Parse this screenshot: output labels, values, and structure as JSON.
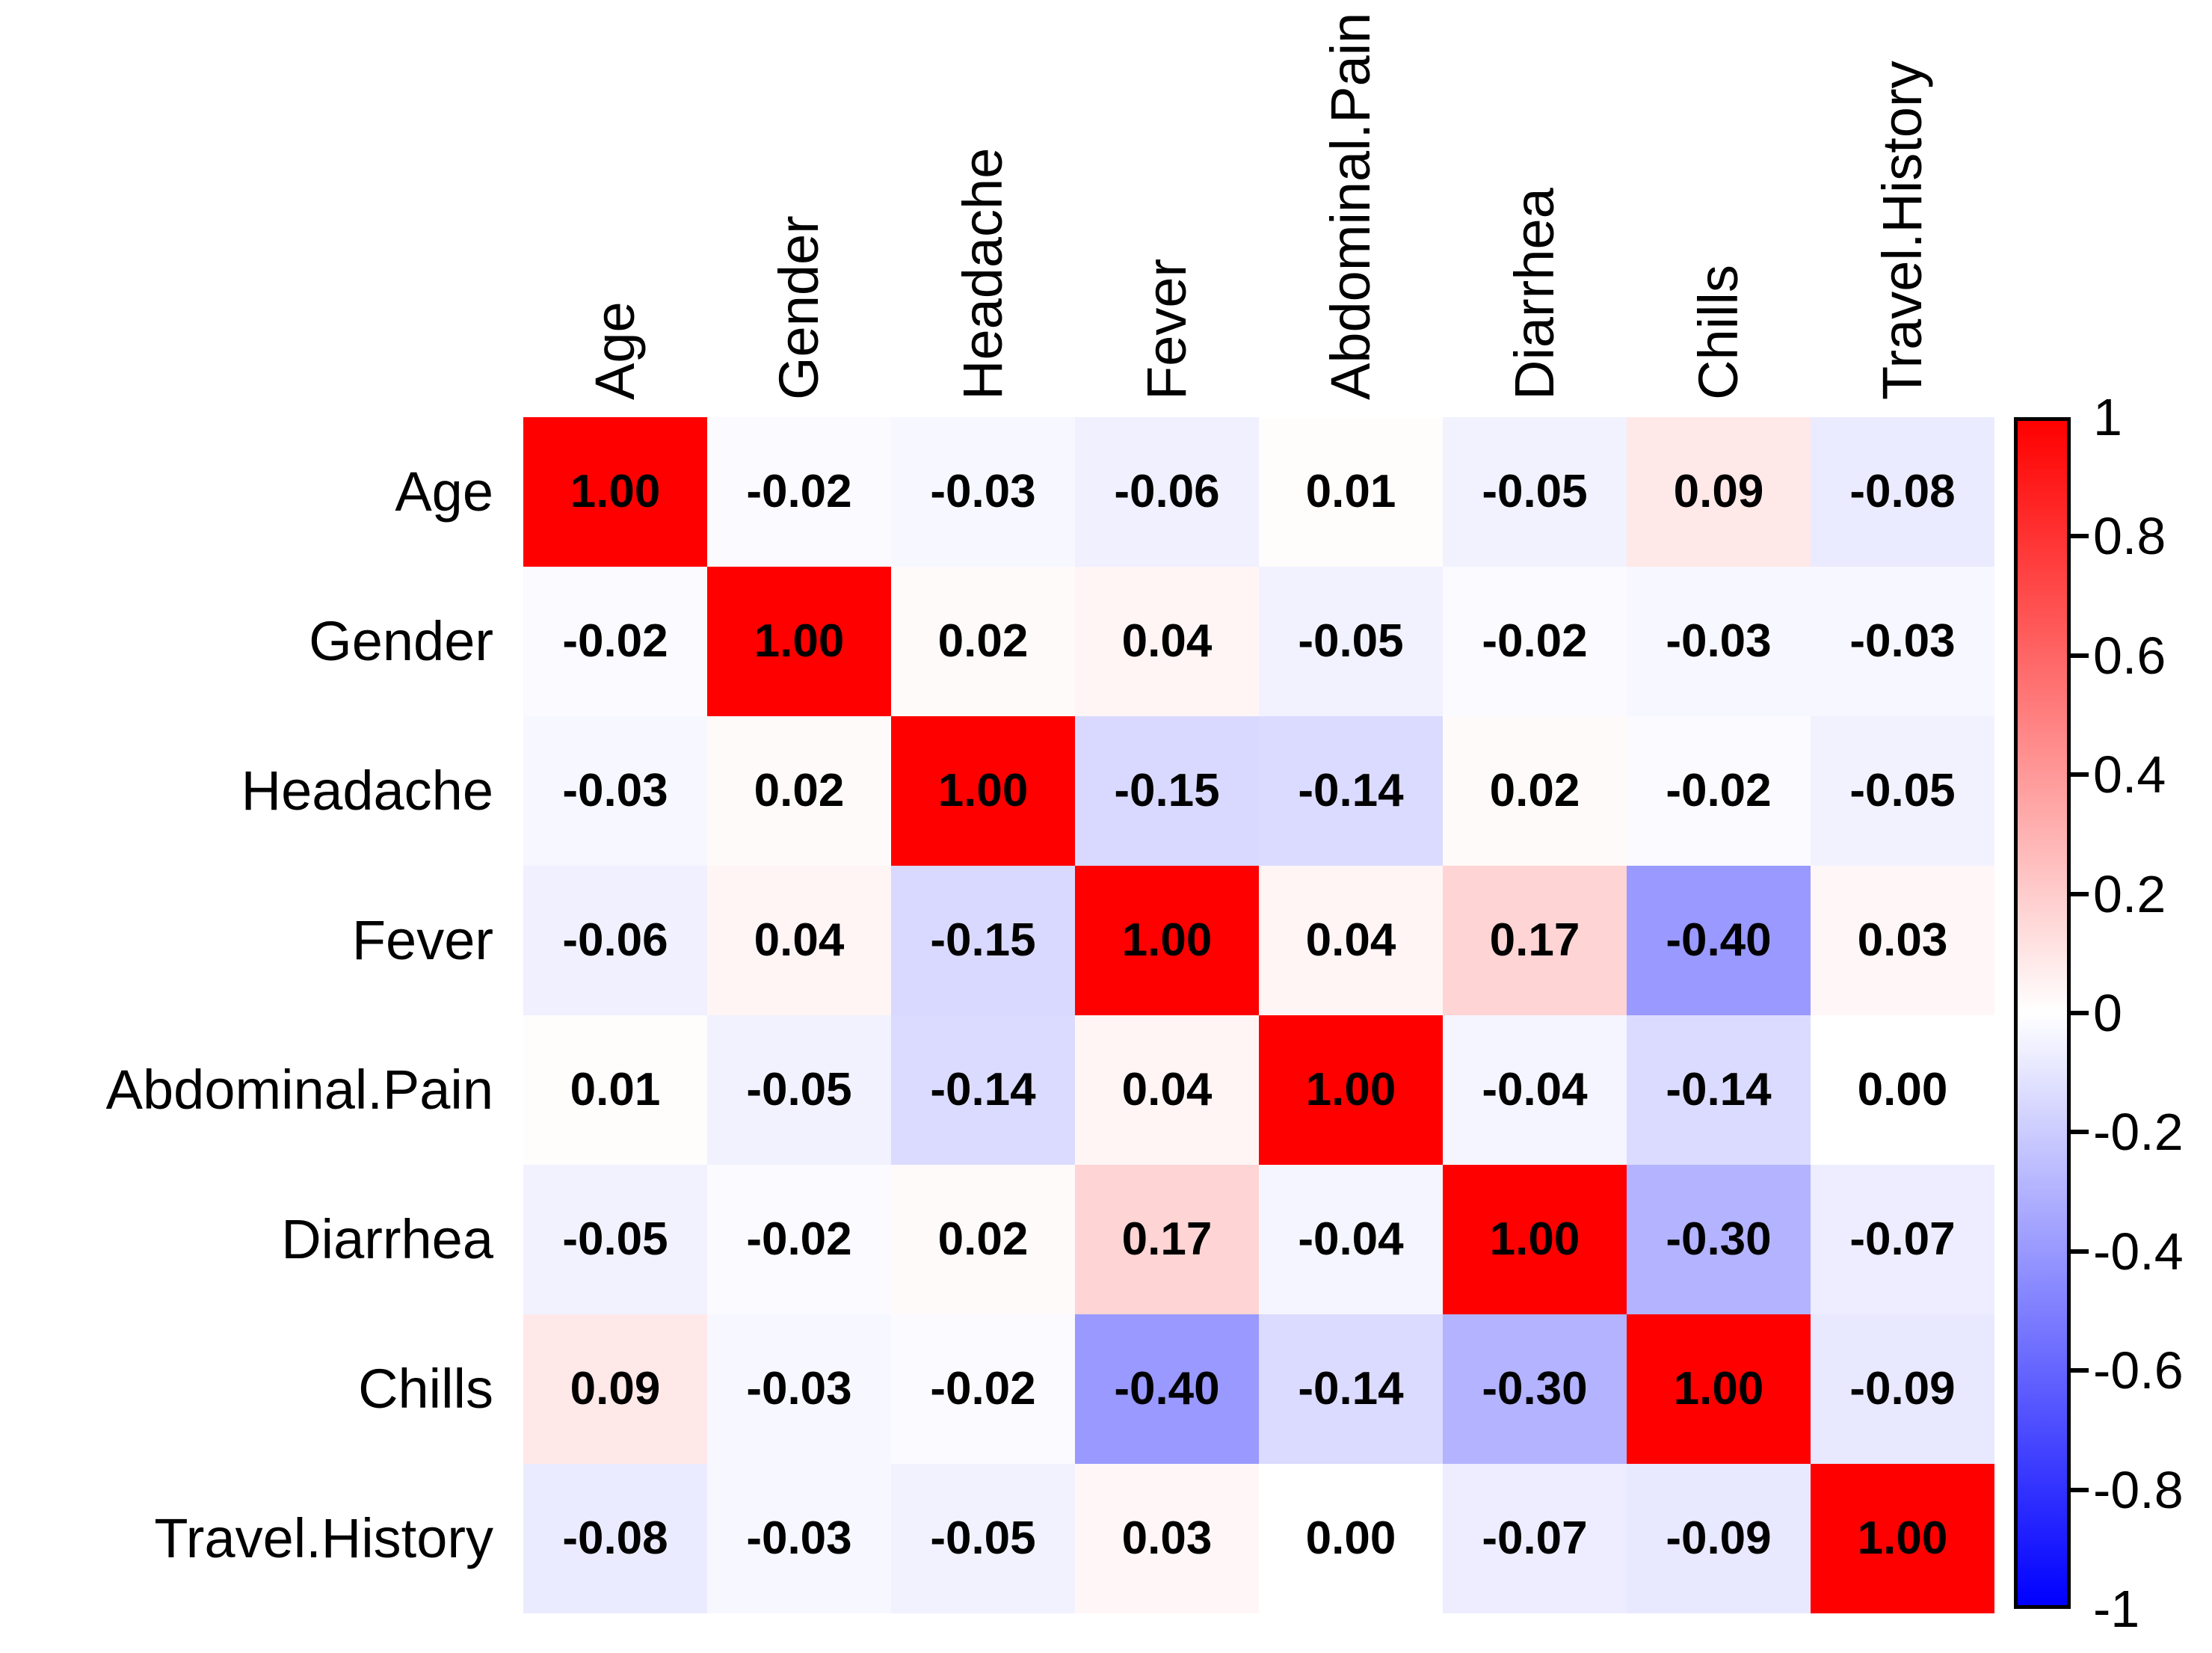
{
  "chart_data": {
    "type": "heatmap",
    "title": "",
    "variables": [
      "Age",
      "Gender",
      "Headache",
      "Fever",
      "Abdominal.Pain",
      "Diarrhea",
      "Chills",
      "Travel.History"
    ],
    "matrix": [
      [
        1.0,
        -0.02,
        -0.03,
        -0.06,
        0.01,
        -0.05,
        0.09,
        -0.08
      ],
      [
        -0.02,
        1.0,
        0.02,
        0.04,
        -0.05,
        -0.02,
        -0.03,
        -0.03
      ],
      [
        -0.03,
        0.02,
        1.0,
        -0.15,
        -0.14,
        0.02,
        -0.02,
        -0.05
      ],
      [
        -0.06,
        0.04,
        -0.15,
        1.0,
        0.04,
        0.17,
        -0.4,
        0.03
      ],
      [
        0.01,
        -0.05,
        -0.14,
        0.04,
        1.0,
        -0.04,
        -0.14,
        0.0
      ],
      [
        -0.05,
        -0.02,
        0.02,
        0.17,
        -0.04,
        1.0,
        -0.3,
        -0.07
      ],
      [
        0.09,
        -0.03,
        -0.02,
        -0.4,
        -0.14,
        -0.3,
        1.0,
        -0.09
      ],
      [
        -0.08,
        -0.03,
        -0.05,
        0.03,
        0.0,
        -0.07,
        -0.09,
        1.0
      ]
    ],
    "value_decimals": 2,
    "cell_text_color": "#000000",
    "label_text_color": "#000000",
    "colorbar": {
      "position": "right",
      "min": -1,
      "max": 1,
      "color_max": "#FF0000",
      "color_mid": "#FFFFFF",
      "color_min": "#0000FF",
      "tick_values": [
        1,
        0.8,
        0.6,
        0.4,
        0.2,
        0,
        -0.2,
        -0.4,
        -0.6,
        -0.8,
        -1
      ],
      "tick_labels": [
        "1",
        "0.8",
        "0.6",
        "0.4",
        "0.2",
        "0",
        "-0.2",
        "-0.4",
        "-0.6",
        "-0.8",
        "-1"
      ]
    },
    "grid": false,
    "legend_position": "right"
  }
}
